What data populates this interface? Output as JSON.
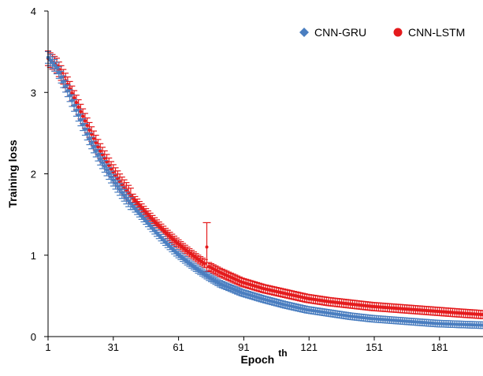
{
  "chart_data": {
    "type": "line",
    "xlabel": "Epoch",
    "xlabel_sup": "th",
    "ylabel": "Training loss",
    "xlim": [
      1,
      201
    ],
    "ylim": [
      0,
      4
    ],
    "x_ticks": [
      1,
      31,
      61,
      91,
      121,
      151,
      181
    ],
    "y_ticks": [
      0,
      1,
      2,
      3,
      4
    ],
    "grid": false,
    "legend_position": "top-right",
    "series": [
      {
        "name": "CNN-GRU",
        "color": "#4a7ec0",
        "marker": "diamond",
        "x": [
          1,
          5,
          10,
          15,
          20,
          25,
          30,
          35,
          40,
          45,
          50,
          55,
          60,
          65,
          70,
          75,
          80,
          90,
          100,
          110,
          120,
          130,
          140,
          150,
          160,
          170,
          180,
          190,
          201
        ],
        "values": [
          3.43,
          3.3,
          3.02,
          2.72,
          2.43,
          2.18,
          1.96,
          1.77,
          1.6,
          1.45,
          1.3,
          1.16,
          1.03,
          0.92,
          0.82,
          0.73,
          0.65,
          0.54,
          0.46,
          0.39,
          0.33,
          0.29,
          0.25,
          0.22,
          0.2,
          0.18,
          0.16,
          0.15,
          0.14
        ],
        "error": 0.04
      },
      {
        "name": "CNN-LSTM",
        "color": "#e41a1c",
        "marker": "circle",
        "x": [
          1,
          5,
          10,
          15,
          20,
          25,
          30,
          35,
          40,
          45,
          50,
          55,
          60,
          65,
          70,
          75,
          80,
          90,
          100,
          110,
          120,
          130,
          140,
          150,
          160,
          170,
          180,
          190,
          201
        ],
        "values": [
          3.42,
          3.33,
          3.1,
          2.82,
          2.54,
          2.28,
          2.06,
          1.87,
          1.7,
          1.55,
          1.41,
          1.28,
          1.16,
          1.05,
          0.95,
          0.86,
          0.79,
          0.67,
          0.59,
          0.53,
          0.47,
          0.43,
          0.4,
          0.37,
          0.35,
          0.33,
          0.31,
          0.29,
          0.27
        ],
        "error": 0.05,
        "outlier": {
          "x": 74,
          "value": 1.1,
          "upper": 1.4,
          "lower": 0.8
        }
      }
    ]
  }
}
